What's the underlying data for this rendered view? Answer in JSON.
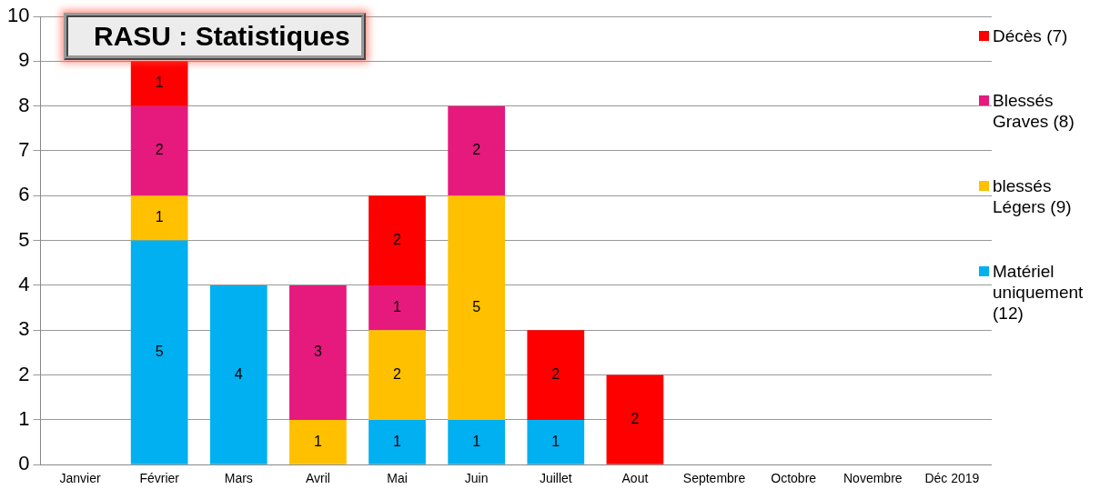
{
  "chart_data": {
    "type": "bar",
    "title": "RASU : Statistiques",
    "stacked": true,
    "data_labels": true,
    "grid": "y",
    "legend": "right",
    "categories": [
      "Janvier",
      "Février",
      "Mars",
      "Avril",
      "Mai",
      "Juin",
      "Juillet",
      "Aout",
      "Septembre",
      "Octobre",
      "Novembre",
      "Déc 2019"
    ],
    "ylim": [
      0,
      10
    ],
    "yticks": [
      0,
      1,
      2,
      3,
      4,
      5,
      6,
      7,
      8,
      9,
      10
    ],
    "series": [
      {
        "name": "Matériel uniquement (12)",
        "color": "#00b0f0",
        "values": [
          null,
          5,
          4,
          null,
          1,
          1,
          1,
          null,
          null,
          null,
          null,
          null
        ]
      },
      {
        "name": "blessés Légers (9)",
        "color": "#ffc000",
        "values": [
          null,
          1,
          null,
          1,
          2,
          5,
          null,
          null,
          null,
          null,
          null,
          null
        ]
      },
      {
        "name": "Blessés Graves (8)",
        "color": "#e6197d",
        "values": [
          null,
          2,
          null,
          3,
          1,
          2,
          null,
          null,
          null,
          null,
          null,
          null
        ]
      },
      {
        "name": "Décès (7)",
        "color": "#ff0000",
        "values": [
          null,
          1,
          null,
          null,
          2,
          null,
          2,
          2,
          null,
          null,
          null,
          null
        ]
      }
    ]
  }
}
